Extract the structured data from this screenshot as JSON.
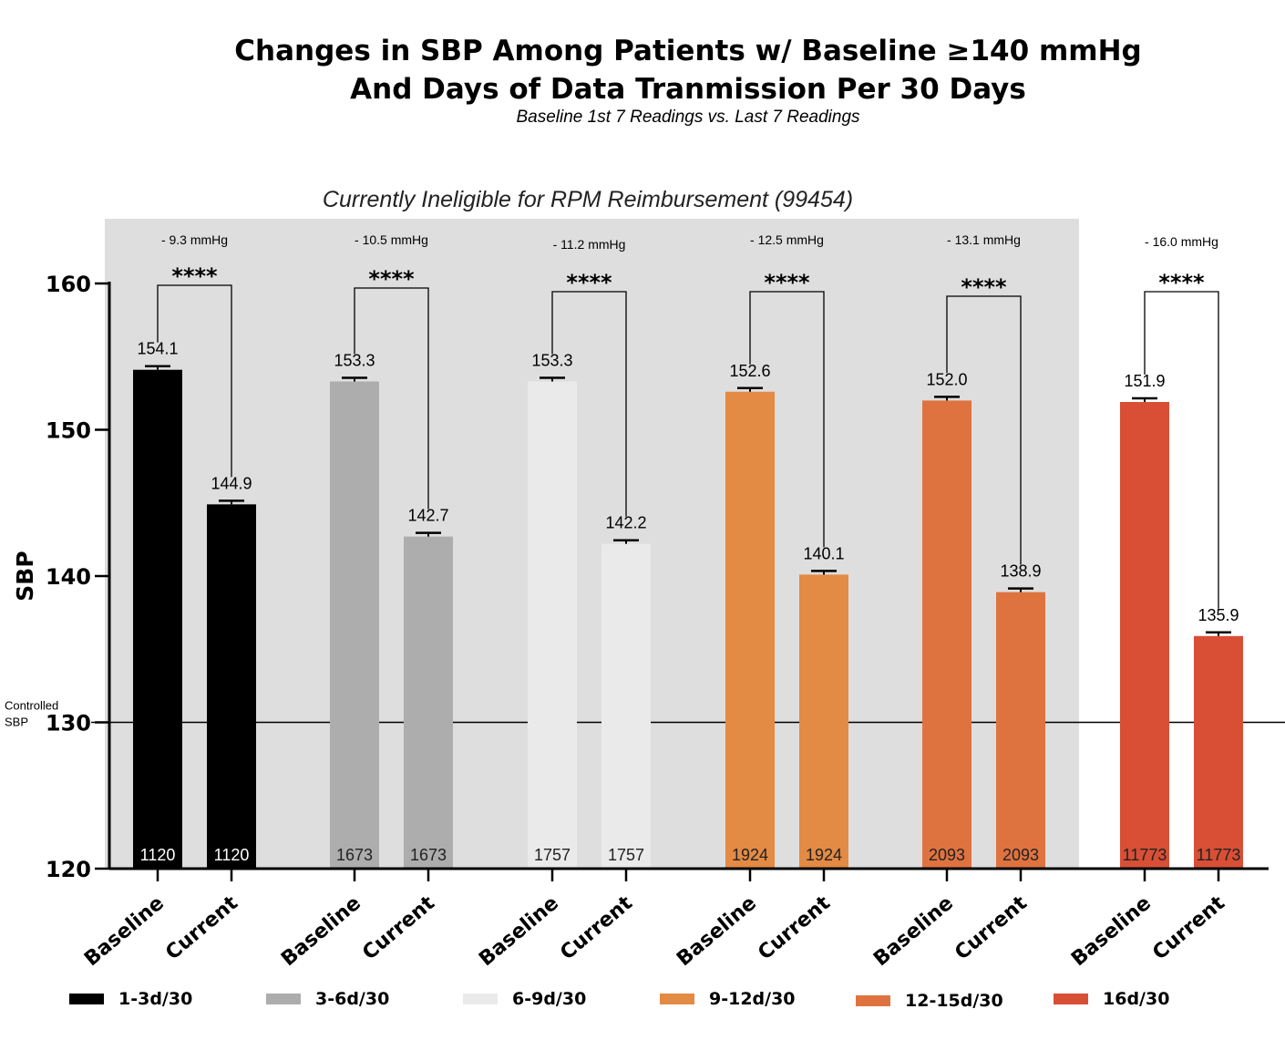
{
  "chart_data": {
    "type": "bar",
    "title_line1": "Changes in SBP Among Patients w/ Baseline ≥140 mmHg",
    "title_line2": "And Days of Data Tranmission Per 30 Days",
    "subtitle": "Baseline 1st 7 Readings vs. Last 7 Readings",
    "region_label": "Currently Ineligible for RPM Reimbursement (99454)",
    "ylabel": "SBP",
    "ylim": [
      120,
      160
    ],
    "yticks": [
      "120",
      "130",
      "140",
      "150",
      "160"
    ],
    "reference_line": {
      "value": 130,
      "label_line1": "Controlled",
      "label_line2": "SBP"
    },
    "significance": "****",
    "categories": [
      "Baseline",
      "Current"
    ],
    "groups": [
      {
        "legend": "1-3d/30",
        "color": "#000000",
        "n_color": "#ffffff",
        "values": [
          154.1,
          144.9
        ],
        "value_labels": [
          "154.1",
          "144.9"
        ],
        "n": [
          "1120",
          "1120"
        ],
        "diff": "- 9.3 mmHg"
      },
      {
        "legend": "3-6d/30",
        "color": "#adadad",
        "n_color": "#222222",
        "values": [
          153.3,
          142.7
        ],
        "value_labels": [
          "153.3",
          "142.7"
        ],
        "n": [
          "1673",
          "1673"
        ],
        "diff": "- 10.5 mmHg"
      },
      {
        "legend": "6-9d/30",
        "color": "#eaeaea",
        "n_color": "#222222",
        "values": [
          153.3,
          142.2
        ],
        "value_labels": [
          "153.3",
          "142.2"
        ],
        "n": [
          "1757",
          "1757"
        ],
        "diff": "- 11.2 mmHg"
      },
      {
        "legend": "9-12d/30",
        "color": "#e38a45",
        "n_color": "#222222",
        "values": [
          152.6,
          140.1
        ],
        "value_labels": [
          "152.6",
          "140.1"
        ],
        "n": [
          "1924",
          "1924"
        ],
        "diff": "- 12.5 mmHg"
      },
      {
        "legend": "12-15d/30",
        "color": "#df7340",
        "n_color": "#222222",
        "values": [
          152.0,
          138.9
        ],
        "value_labels": [
          "152.0",
          "138.9"
        ],
        "n": [
          "2093",
          "2093"
        ],
        "diff": "- 13.1 mmHg"
      },
      {
        "legend": "16d/30",
        "color": "#d84f36",
        "n_color": "#222222",
        "values": [
          151.9,
          135.9
        ],
        "value_labels": [
          "151.9",
          "135.9"
        ],
        "n": [
          "11773",
          "11773"
        ],
        "diff": "- 16.0 mmHg"
      }
    ]
  }
}
